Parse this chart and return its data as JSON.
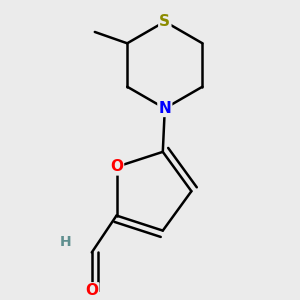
{
  "background_color": "#ebebeb",
  "bond_color": "#000000",
  "atom_colors": {
    "S": "#8B8B00",
    "N": "#0000FF",
    "O": "#FF0000",
    "C": "#000000",
    "H": "#5f8f8f"
  },
  "figsize": [
    3.0,
    3.0
  ],
  "dpi": 100
}
